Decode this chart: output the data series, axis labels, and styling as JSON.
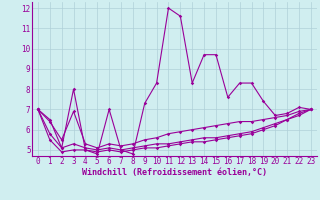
{
  "title": "",
  "xlabel": "Windchill (Refroidissement éolien,°C)",
  "bg_color": "#d0eef0",
  "line_color": "#990099",
  "grid_color": "#b0d0d8",
  "x": [
    0,
    1,
    2,
    3,
    4,
    5,
    6,
    7,
    8,
    9,
    10,
    11,
    12,
    13,
    14,
    15,
    16,
    17,
    18,
    19,
    20,
    21,
    22,
    23
  ],
  "line1": [
    7.0,
    6.5,
    5.1,
    8.0,
    5.0,
    4.8,
    7.0,
    5.0,
    4.8,
    7.3,
    8.3,
    12.0,
    11.6,
    8.3,
    9.7,
    9.7,
    7.6,
    8.3,
    8.3,
    7.4,
    6.7,
    6.8,
    7.1,
    7.0
  ],
  "line2": [
    7.0,
    6.4,
    5.5,
    6.9,
    5.3,
    5.1,
    5.3,
    5.2,
    5.3,
    5.5,
    5.6,
    5.8,
    5.9,
    6.0,
    6.1,
    6.2,
    6.3,
    6.4,
    6.4,
    6.5,
    6.6,
    6.7,
    6.9,
    7.0
  ],
  "line3": [
    7.0,
    5.8,
    5.1,
    5.3,
    5.1,
    5.0,
    5.1,
    5.0,
    5.1,
    5.2,
    5.3,
    5.3,
    5.4,
    5.5,
    5.6,
    5.6,
    5.7,
    5.8,
    5.9,
    6.1,
    6.3,
    6.5,
    6.8,
    7.0
  ],
  "line4": [
    7.0,
    5.5,
    4.9,
    5.0,
    5.0,
    4.9,
    5.0,
    4.9,
    5.0,
    5.1,
    5.1,
    5.2,
    5.3,
    5.4,
    5.4,
    5.5,
    5.6,
    5.7,
    5.8,
    6.0,
    6.2,
    6.5,
    6.7,
    7.0
  ],
  "ylim_min": 4.7,
  "ylim_max": 12.3,
  "xlim_min": -0.5,
  "xlim_max": 23.5,
  "yticks": [
    5,
    6,
    7,
    8,
    9,
    10,
    11,
    12
  ],
  "xticks": [
    0,
    1,
    2,
    3,
    4,
    5,
    6,
    7,
    8,
    9,
    10,
    11,
    12,
    13,
    14,
    15,
    16,
    17,
    18,
    19,
    20,
    21,
    22,
    23
  ],
  "tick_fontsize": 5.5,
  "xlabel_fontsize": 6.0
}
